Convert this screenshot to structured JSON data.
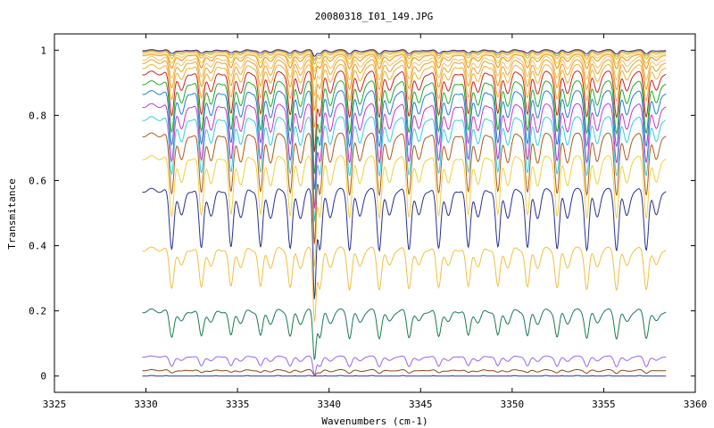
{
  "chart_data": {
    "type": "line",
    "title": "20080318_I01_149.JPG",
    "xlabel": "Wavenumbers (cm-1)",
    "ylabel": "Transmitance",
    "xlim": [
      3325,
      3360
    ],
    "ylim": [
      -0.05,
      1.05
    ],
    "x_ticks": [
      3325,
      3330,
      3335,
      3340,
      3345,
      3350,
      3355,
      3360
    ],
    "x_tick_labels": [
      "3325",
      "3330",
      "3335",
      "3340",
      "3345",
      "3350",
      "3355",
      "3360"
    ],
    "y_ticks": [
      0,
      0.2,
      0.4,
      0.6,
      0.8,
      1
    ],
    "y_tick_labels": [
      "0",
      "0.2",
      "0.4",
      "0.6",
      "0.8",
      "1"
    ],
    "grid": false,
    "x_range": [
      3329.8,
      3358.4
    ],
    "series": [
      {
        "baseline": 0.0,
        "depth": 0.005,
        "color": "#3030a0"
      },
      {
        "baseline": 0.018,
        "depth": 0.008,
        "color": "#8b4513"
      },
      {
        "baseline": 0.06,
        "depth": 0.03,
        "color": "#9966ee"
      },
      {
        "baseline": 0.2,
        "depth": 0.08,
        "color": "#1a7a50"
      },
      {
        "baseline": 0.39,
        "depth": 0.12,
        "color": "#f0c040"
      },
      {
        "baseline": 0.57,
        "depth": 0.18,
        "color": "#283090"
      },
      {
        "baseline": 0.67,
        "depth": 0.18,
        "color": "#f0d040"
      },
      {
        "baseline": 0.74,
        "depth": 0.18,
        "color": "#b05a1a"
      },
      {
        "baseline": 0.79,
        "depth": 0.17,
        "color": "#30d0e0"
      },
      {
        "baseline": 0.83,
        "depth": 0.17,
        "color": "#cc33cc"
      },
      {
        "baseline": 0.87,
        "depth": 0.16,
        "color": "#2080d0"
      },
      {
        "baseline": 0.9,
        "depth": 0.15,
        "color": "#22aa22"
      },
      {
        "baseline": 0.93,
        "depth": 0.13,
        "color": "#cc2222"
      },
      {
        "baseline": 0.95,
        "depth": 0.1,
        "color": "#f0b030"
      },
      {
        "baseline": 0.965,
        "depth": 0.08,
        "color": "#e8a030"
      },
      {
        "baseline": 0.975,
        "depth": 0.06,
        "color": "#f0c060"
      },
      {
        "baseline": 0.985,
        "depth": 0.04,
        "color": "#ff8800"
      },
      {
        "baseline": 0.99,
        "depth": 0.03,
        "color": "#e0d040"
      },
      {
        "baseline": 0.995,
        "depth": 0.02,
        "color": "#f0a020"
      },
      {
        "baseline": 0.998,
        "depth": 0.015,
        "color": "#b0a030"
      },
      {
        "baseline": 1.0,
        "depth": 0.01,
        "color": "#3a2a8a"
      }
    ]
  }
}
